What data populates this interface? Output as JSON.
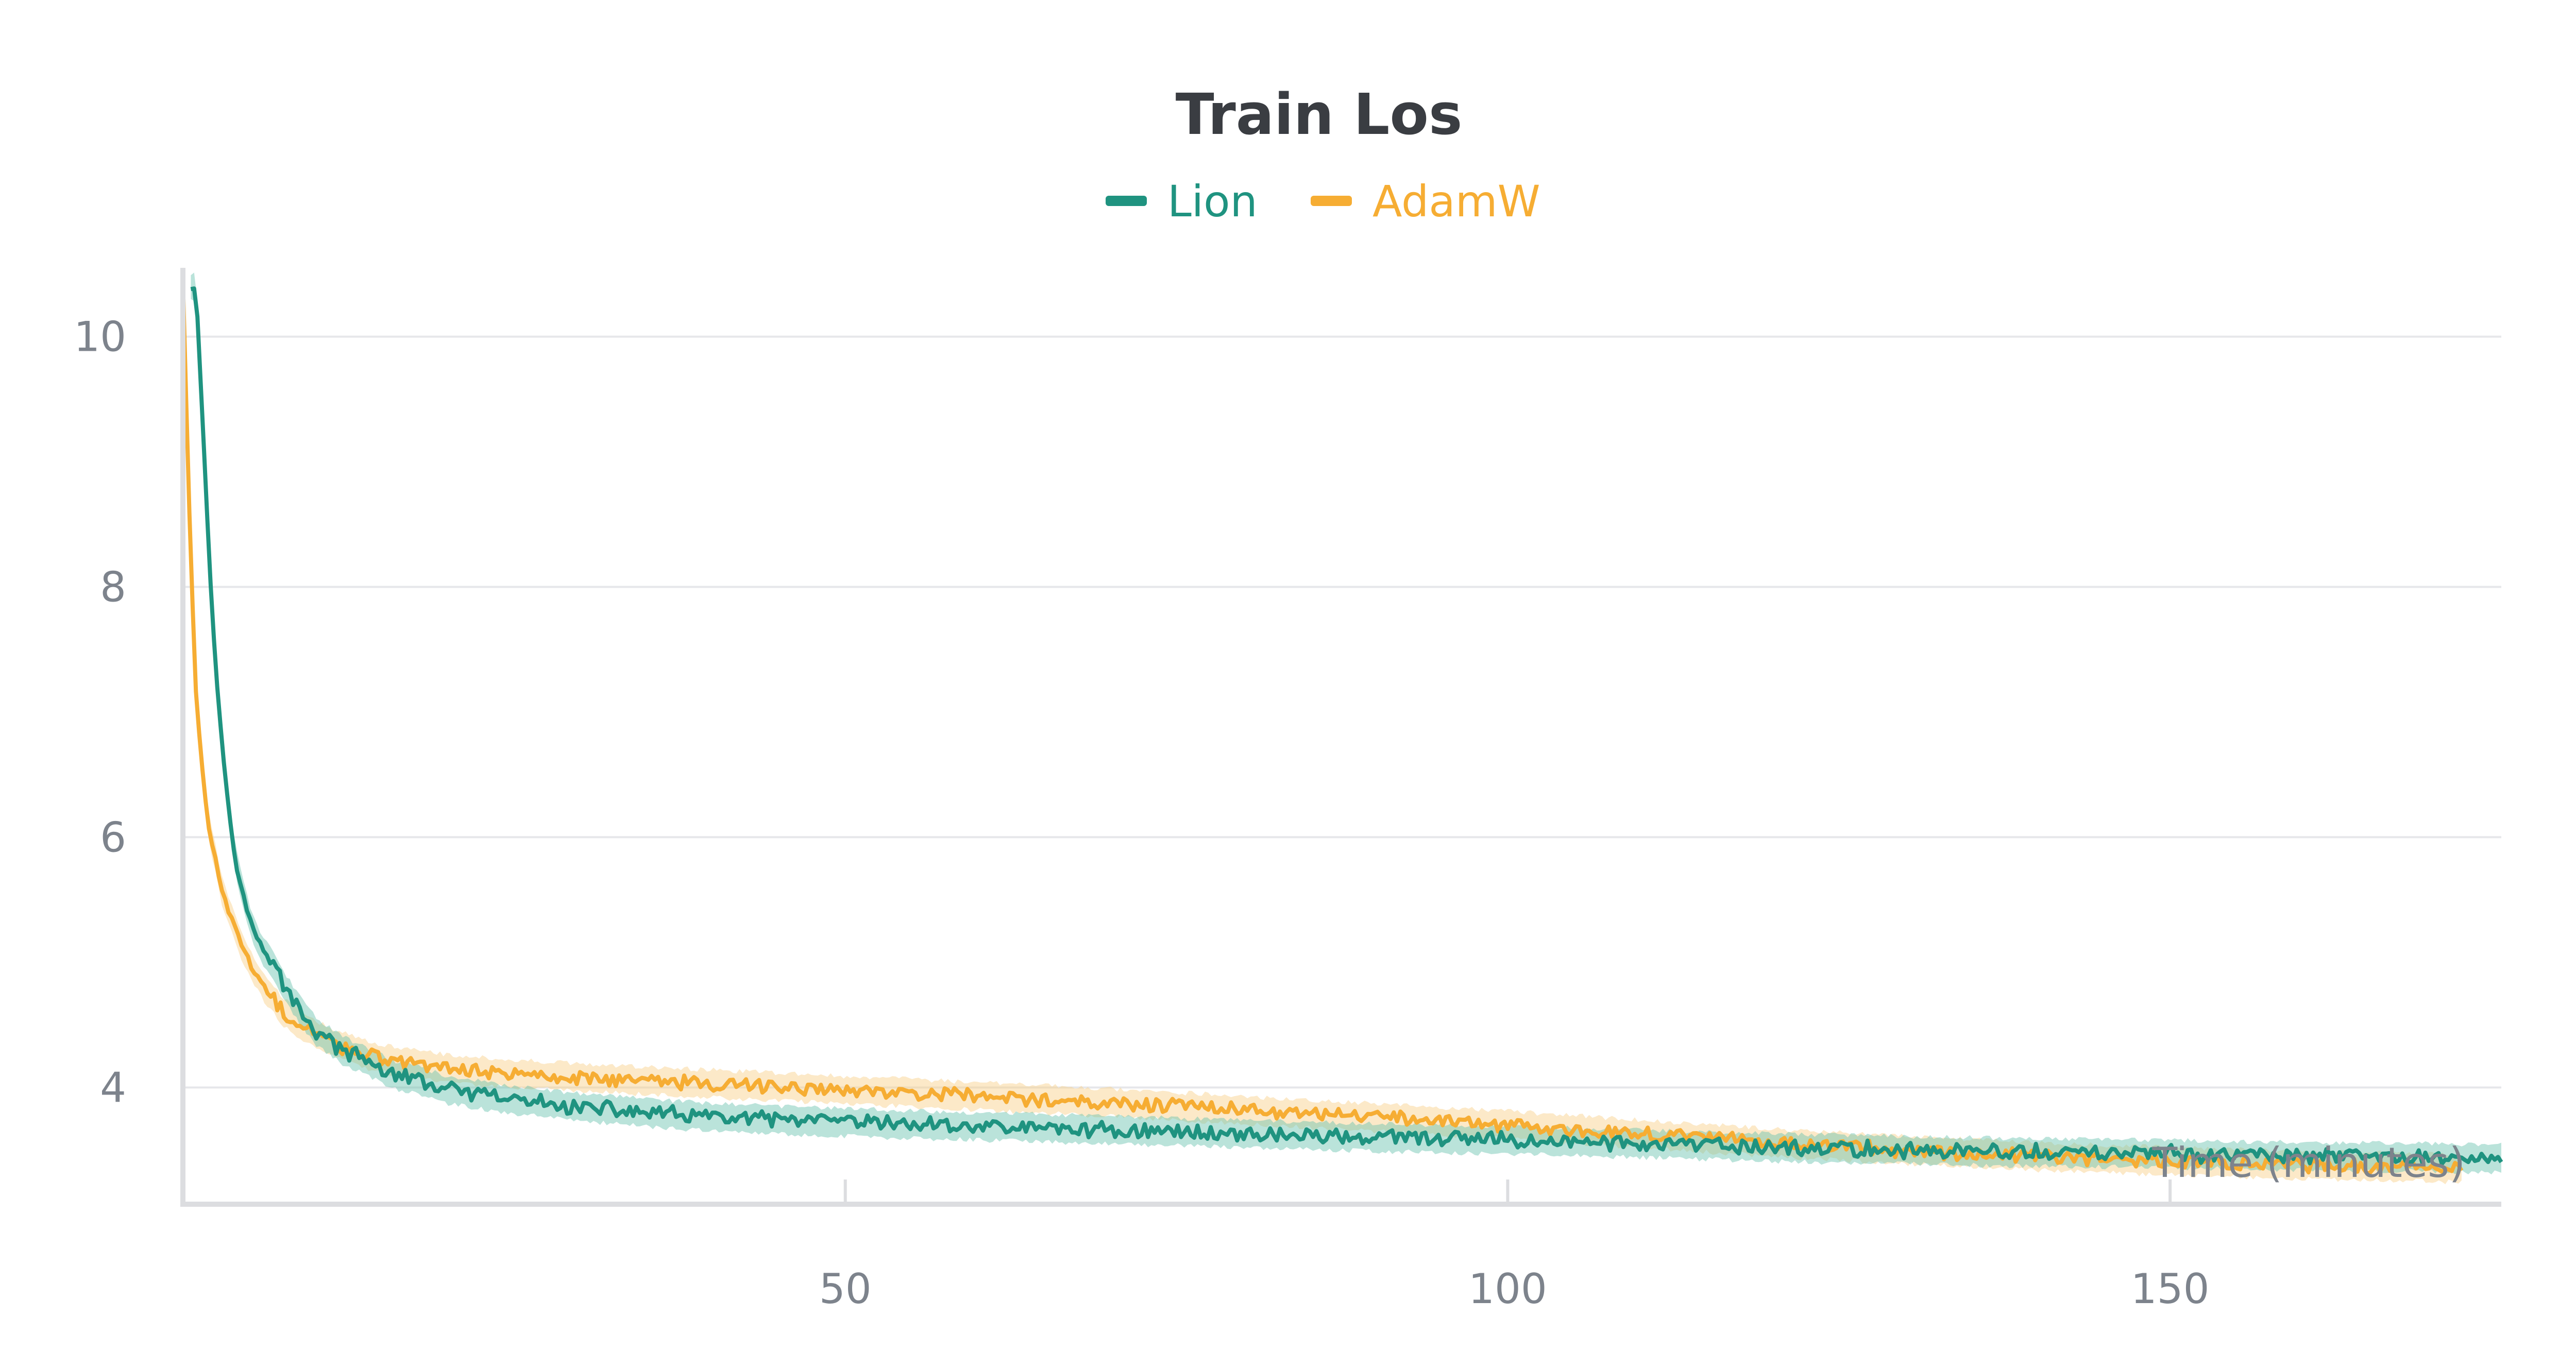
{
  "chart_data": {
    "type": "line",
    "title": "Train Los",
    "xlabel": "Time (minutes)",
    "ylabel": "",
    "xlim": [
      0,
      175
    ],
    "ylim": [
      3.1,
      10.55
    ],
    "xticks": [
      50,
      100,
      150
    ],
    "yticks": [
      4,
      6,
      8,
      10
    ],
    "grid": "horizontal",
    "legend": "top-center",
    "series": [
      {
        "name": "Lion",
        "color": "#1f9380",
        "band_color": "#66c2ae",
        "end_x": 175,
        "noise": 0.055,
        "x": [
          0.6,
          1,
          1.5,
          2,
          2.5,
          3,
          3.5,
          4,
          5,
          6,
          7,
          8,
          9,
          10,
          12,
          14,
          16,
          18,
          20,
          25,
          30,
          35,
          40,
          45,
          50,
          60,
          70,
          80,
          90,
          100,
          110,
          120,
          130,
          140,
          150,
          160,
          170,
          175
        ],
        "y": [
          10.4,
          10.4,
          9.3,
          8.2,
          7.3,
          6.7,
          6.2,
          5.8,
          5.35,
          5.1,
          4.95,
          4.75,
          4.6,
          4.45,
          4.3,
          4.2,
          4.1,
          4.05,
          3.98,
          3.9,
          3.84,
          3.8,
          3.76,
          3.74,
          3.72,
          3.69,
          3.66,
          3.63,
          3.6,
          3.58,
          3.55,
          3.52,
          3.5,
          3.48,
          3.47,
          3.45,
          3.44,
          3.43
        ]
      },
      {
        "name": "AdamW",
        "color": "#f6ad33",
        "band_color": "#f9cf86",
        "end_x": 172,
        "noise": 0.05,
        "x": [
          0,
          0.3,
          0.6,
          1,
          1.5,
          2,
          3,
          4,
          5,
          6,
          7,
          8,
          10,
          12,
          14,
          16,
          18,
          20,
          25,
          30,
          40,
          50,
          60,
          70,
          80,
          90,
          100,
          110,
          120,
          130,
          140,
          150,
          160,
          170,
          172
        ],
        "y": [
          10.45,
          9.3,
          8.2,
          7.1,
          6.5,
          6.05,
          5.55,
          5.25,
          5.0,
          4.82,
          4.68,
          4.56,
          4.42,
          4.33,
          4.26,
          4.21,
          4.18,
          4.15,
          4.11,
          4.08,
          4.03,
          3.98,
          3.93,
          3.88,
          3.82,
          3.76,
          3.7,
          3.63,
          3.56,
          3.5,
          3.45,
          3.41,
          3.38,
          3.36,
          3.35
        ]
      }
    ]
  }
}
